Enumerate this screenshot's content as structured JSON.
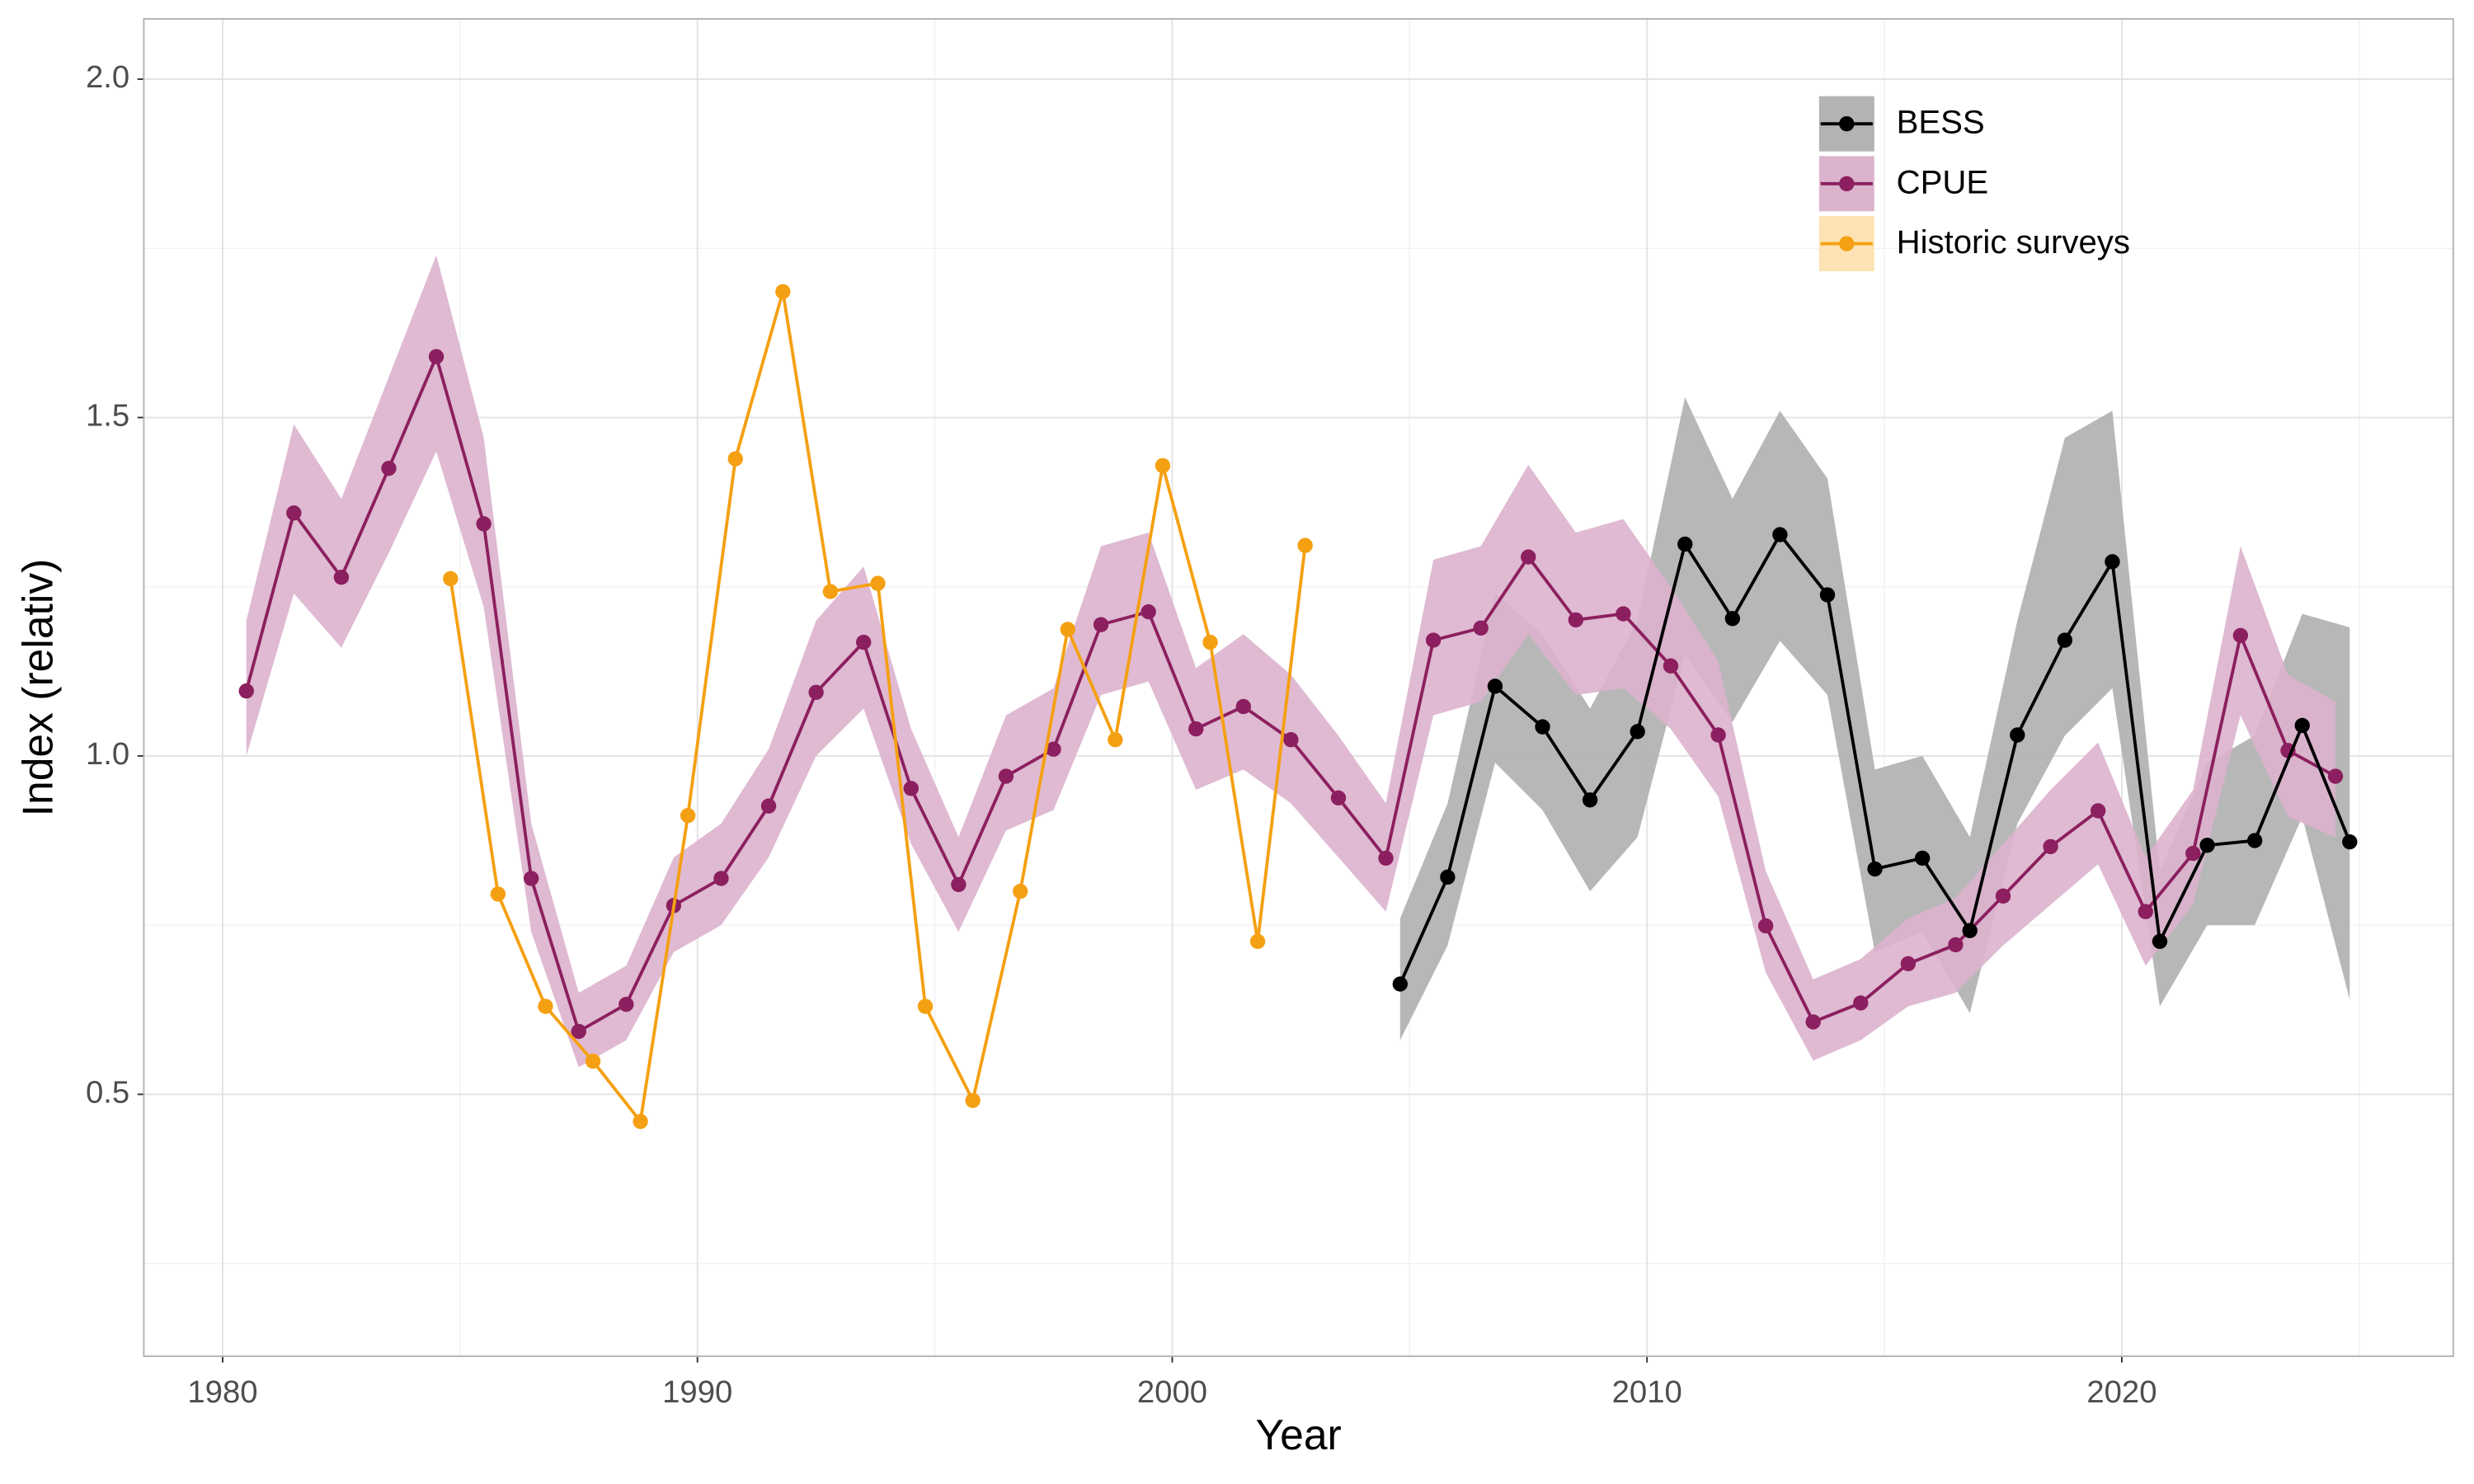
{
  "chart_data": {
    "type": "line",
    "xlabel": "Year",
    "ylabel": "Index (relativ)",
    "xlim": [
      1978.34,
      2026.98
    ],
    "ylim": [
      0.113,
      2.089
    ],
    "xticks": [
      1980,
      1990,
      2000,
      2010,
      2020
    ],
    "yticks": [
      {
        "value": 0.5,
        "label": "0.5"
      },
      {
        "value": 1.0,
        "label": "1.0"
      },
      {
        "value": 1.5,
        "label": "1.5"
      },
      {
        "value": 2.0,
        "label": "2.0"
      }
    ],
    "xminorticks": [
      1985,
      1995,
      2005,
      2015,
      2025
    ],
    "yminorticks": [
      0.25,
      0.75,
      1.25,
      1.75
    ],
    "grid": true,
    "legend": "upper right",
    "series": [
      {
        "name": "BESS",
        "color": "#000000",
        "band_color": "#b3b3b3",
        "x": [
          2004.8,
          2005.8,
          2006.8,
          2007.8,
          2008.8,
          2009.8,
          2010.8,
          2011.8,
          2012.8,
          2013.8,
          2014.8,
          2015.8,
          2016.8,
          2017.8,
          2018.8,
          2019.8,
          2020.8,
          2021.8,
          2022.8,
          2023.8,
          2024.8
        ],
        "values": [
          0.663,
          0.821,
          1.103,
          1.043,
          0.935,
          1.036,
          1.313,
          1.203,
          1.327,
          1.238,
          0.833,
          0.849,
          0.742,
          1.031,
          1.171,
          1.287,
          0.726,
          0.868,
          0.875,
          1.045,
          0.873
        ],
        "lower": [
          0.58,
          0.72,
          0.99,
          0.92,
          0.8,
          0.88,
          1.15,
          1.05,
          1.17,
          1.09,
          0.71,
          0.74,
          0.62,
          0.9,
          1.03,
          1.1,
          0.63,
          0.75,
          0.75,
          0.91,
          0.64
        ],
        "upper": [
          0.76,
          0.93,
          1.24,
          1.18,
          1.07,
          1.2,
          1.53,
          1.38,
          1.51,
          1.41,
          0.98,
          1.0,
          0.88,
          1.2,
          1.47,
          1.51,
          0.83,
          0.99,
          1.03,
          1.21,
          1.19
        ]
      },
      {
        "name": "CPUE",
        "color": "#8c1f5f",
        "band_color": "#dbb3cd",
        "x": [
          1980.5,
          1981.5,
          1982.5,
          1983.5,
          1984.5,
          1985.5,
          1986.5,
          1987.5,
          1988.5,
          1989.5,
          1990.5,
          1991.5,
          1992.5,
          1993.5,
          1994.5,
          1995.5,
          1996.5,
          1997.5,
          1998.5,
          1999.5,
          2000.5,
          2001.5,
          2002.5,
          2003.5,
          2004.5,
          2005.5,
          2006.5,
          2007.5,
          2008.5,
          2009.5,
          2010.5,
          2011.5,
          2012.5,
          2013.5,
          2014.5,
          2015.5,
          2016.5,
          2017.5,
          2018.5,
          2019.5,
          2020.5,
          2021.5,
          2022.5,
          2023.5,
          2024.5
        ],
        "values": [
          1.096,
          1.359,
          1.264,
          1.425,
          1.59,
          1.343,
          0.819,
          0.593,
          0.633,
          0.779,
          0.819,
          0.926,
          1.094,
          1.168,
          0.952,
          0.81,
          0.97,
          1.01,
          1.194,
          1.213,
          1.04,
          1.073,
          1.024,
          0.938,
          0.849,
          1.171,
          1.189,
          1.294,
          1.201,
          1.21,
          1.133,
          1.031,
          0.749,
          0.607,
          0.635,
          0.693,
          0.721,
          0.793,
          0.866,
          0.919,
          0.77,
          0.856,
          1.178,
          1.008,
          0.97
        ],
        "lower": [
          1.0,
          1.24,
          1.16,
          1.3,
          1.45,
          1.22,
          0.74,
          0.54,
          0.58,
          0.71,
          0.75,
          0.85,
          1.0,
          1.07,
          0.87,
          0.74,
          0.89,
          0.92,
          1.09,
          1.11,
          0.95,
          0.98,
          0.93,
          0.85,
          0.77,
          1.06,
          1.08,
          1.18,
          1.09,
          1.1,
          1.04,
          0.94,
          0.68,
          0.55,
          0.58,
          0.63,
          0.65,
          0.72,
          0.78,
          0.84,
          0.69,
          0.78,
          1.06,
          0.91,
          0.88
        ],
        "upper": [
          1.2,
          1.49,
          1.38,
          1.56,
          1.74,
          1.47,
          0.9,
          0.65,
          0.69,
          0.85,
          0.9,
          1.01,
          1.2,
          1.28,
          1.04,
          0.88,
          1.06,
          1.1,
          1.31,
          1.33,
          1.13,
          1.18,
          1.12,
          1.03,
          0.93,
          1.29,
          1.31,
          1.43,
          1.33,
          1.35,
          1.25,
          1.14,
          0.83,
          0.67,
          0.7,
          0.76,
          0.79,
          0.87,
          0.95,
          1.02,
          0.85,
          0.95,
          1.31,
          1.12,
          1.08
        ]
      },
      {
        "name": "Historic surveys",
        "color": "#f5a012",
        "band_color": "#fde3b3",
        "x": [
          1984.8,
          1985.8,
          1986.8,
          1987.8,
          1988.8,
          1989.8,
          1990.8,
          1991.8,
          1992.8,
          1993.8,
          1994.8,
          1995.8,
          1996.8,
          1997.8,
          1998.8,
          1999.8,
          2000.8,
          2001.8,
          2002.8
        ],
        "values": [
          1.262,
          0.796,
          0.63,
          0.549,
          0.46,
          0.912,
          1.439,
          1.686,
          1.243,
          1.255,
          0.63,
          0.491,
          0.8,
          1.187,
          1.024,
          1.429,
          1.168,
          0.726,
          1.311
        ]
      }
    ]
  }
}
